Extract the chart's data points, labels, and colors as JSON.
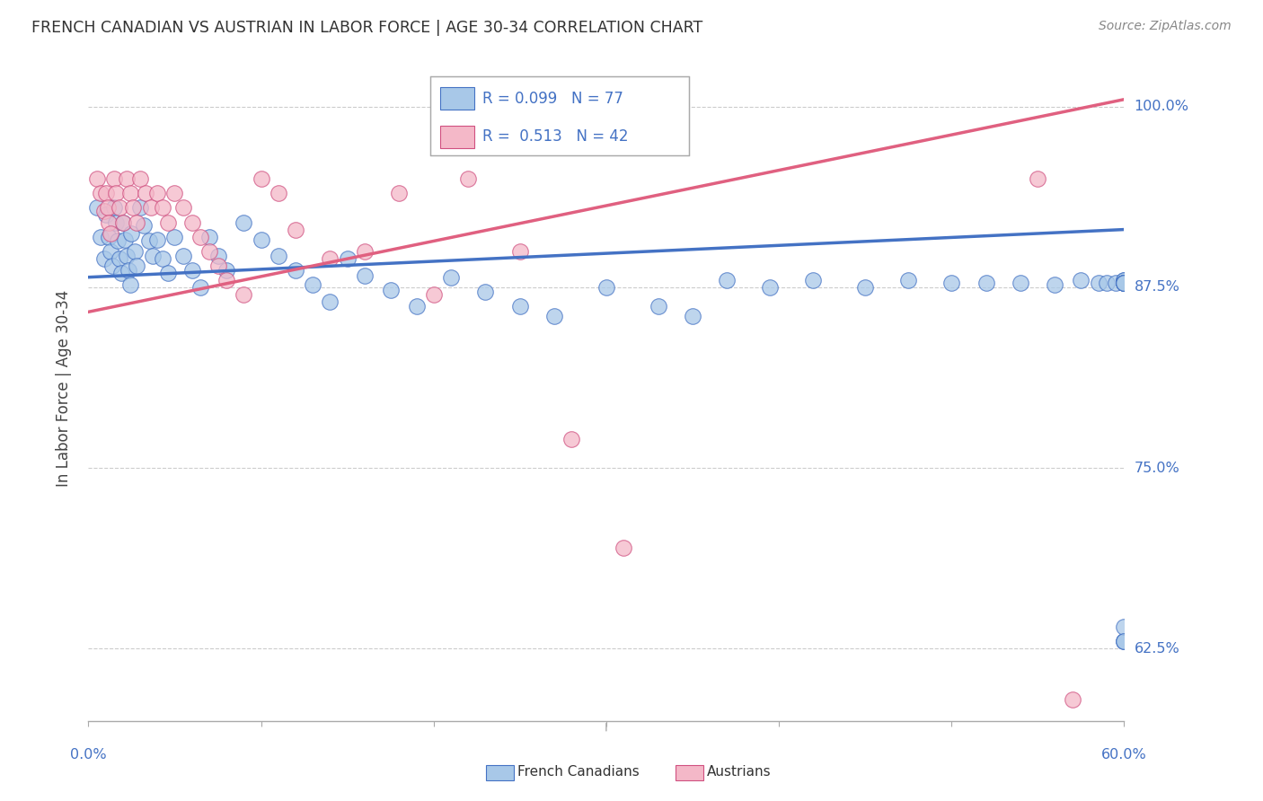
{
  "title": "FRENCH CANADIAN VS AUSTRIAN IN LABOR FORCE | AGE 30-34 CORRELATION CHART",
  "source": "Source: ZipAtlas.com",
  "ylabel": "In Labor Force | Age 30-34",
  "ytick_values": [
    0.625,
    0.75,
    0.875,
    1.0
  ],
  "ytick_labels": [
    "62.5%",
    "75.0%",
    "87.5%",
    "100.0%"
  ],
  "xmin": 0.0,
  "xmax": 0.6,
  "ymin": 0.575,
  "ymax": 1.035,
  "blue_fill": "#a8c8e8",
  "blue_edge": "#4472c4",
  "pink_fill": "#f4b8c8",
  "pink_edge": "#d05080",
  "blue_line_color": "#4472c4",
  "pink_line_color": "#e06080",
  "legend_blue_R": "R = 0.099",
  "legend_blue_N": "N = 77",
  "legend_pink_R": "R =  0.513",
  "legend_pink_N": "N = 42",
  "legend_blue_label": "French Canadians",
  "legend_pink_label": "Austrians",
  "blue_trend_x0": 0.0,
  "blue_trend_y0": 0.882,
  "blue_trend_x1": 0.6,
  "blue_trend_y1": 0.915,
  "pink_trend_x0": 0.0,
  "pink_trend_y0": 0.858,
  "pink_trend_x1": 0.6,
  "pink_trend_y1": 1.005,
  "blue_x": [
    0.005,
    0.007,
    0.009,
    0.01,
    0.012,
    0.013,
    0.014,
    0.015,
    0.016,
    0.017,
    0.018,
    0.019,
    0.02,
    0.021,
    0.022,
    0.023,
    0.024,
    0.025,
    0.027,
    0.028,
    0.03,
    0.032,
    0.035,
    0.037,
    0.04,
    0.043,
    0.046,
    0.05,
    0.055,
    0.06,
    0.065,
    0.07,
    0.075,
    0.08,
    0.09,
    0.1,
    0.11,
    0.12,
    0.13,
    0.14,
    0.15,
    0.16,
    0.175,
    0.19,
    0.21,
    0.23,
    0.25,
    0.27,
    0.3,
    0.33,
    0.35,
    0.37,
    0.395,
    0.42,
    0.45,
    0.475,
    0.5,
    0.52,
    0.54,
    0.56,
    0.575,
    0.585,
    0.59,
    0.595,
    0.6,
    0.6,
    0.6,
    0.6,
    0.6,
    0.6,
    0.6,
    0.6,
    0.6,
    0.6,
    0.6,
    0.6,
    0.6
  ],
  "blue_y": [
    0.93,
    0.91,
    0.895,
    0.925,
    0.91,
    0.9,
    0.89,
    0.93,
    0.92,
    0.907,
    0.895,
    0.885,
    0.92,
    0.908,
    0.897,
    0.887,
    0.877,
    0.912,
    0.9,
    0.89,
    0.93,
    0.918,
    0.907,
    0.897,
    0.908,
    0.895,
    0.885,
    0.91,
    0.897,
    0.887,
    0.875,
    0.91,
    0.897,
    0.887,
    0.92,
    0.908,
    0.897,
    0.887,
    0.877,
    0.865,
    0.895,
    0.883,
    0.873,
    0.862,
    0.882,
    0.872,
    0.862,
    0.855,
    0.875,
    0.862,
    0.855,
    0.88,
    0.875,
    0.88,
    0.875,
    0.88,
    0.878,
    0.878,
    0.878,
    0.877,
    0.88,
    0.878,
    0.878,
    0.878,
    0.88,
    0.88,
    0.878,
    0.878,
    0.63,
    0.878,
    0.63,
    0.878,
    0.878,
    0.64,
    0.878,
    0.878,
    0.63
  ],
  "pink_x": [
    0.005,
    0.007,
    0.009,
    0.01,
    0.011,
    0.012,
    0.013,
    0.015,
    0.016,
    0.018,
    0.02,
    0.022,
    0.024,
    0.026,
    0.028,
    0.03,
    0.033,
    0.036,
    0.04,
    0.043,
    0.046,
    0.05,
    0.055,
    0.06,
    0.065,
    0.07,
    0.075,
    0.08,
    0.09,
    0.1,
    0.11,
    0.12,
    0.14,
    0.16,
    0.18,
    0.2,
    0.22,
    0.25,
    0.28,
    0.31,
    0.55,
    0.57
  ],
  "pink_y": [
    0.95,
    0.94,
    0.928,
    0.94,
    0.93,
    0.92,
    0.912,
    0.95,
    0.94,
    0.93,
    0.92,
    0.95,
    0.94,
    0.93,
    0.92,
    0.95,
    0.94,
    0.93,
    0.94,
    0.93,
    0.92,
    0.94,
    0.93,
    0.92,
    0.91,
    0.9,
    0.89,
    0.88,
    0.87,
    0.95,
    0.94,
    0.915,
    0.895,
    0.9,
    0.94,
    0.87,
    0.95,
    0.9,
    0.77,
    0.695,
    0.95,
    0.59
  ]
}
